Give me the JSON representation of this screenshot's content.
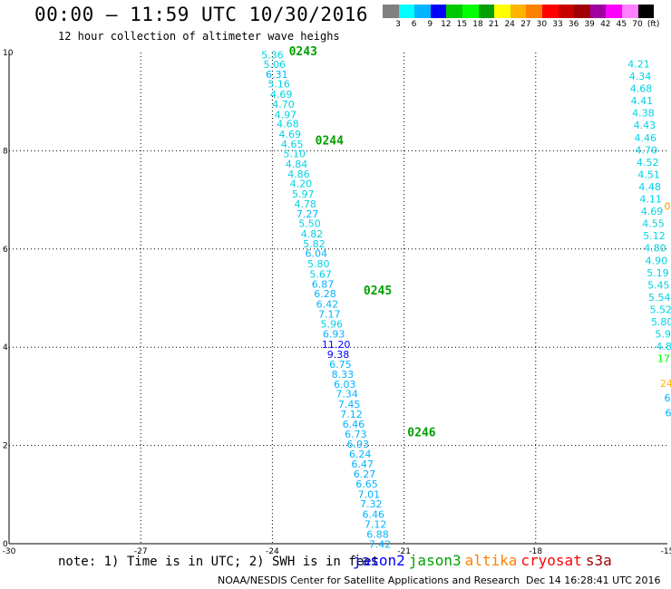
{
  "header": {
    "title": "00:00 – 11:59 UTC 10/30/2016",
    "subtitle": "12 hour collection of altimeter wave heighs"
  },
  "legend": {
    "colors": [
      "#808080",
      "#00ffff",
      "#00b4ff",
      "#0000ff",
      "#00c800",
      "#00ff00",
      "#00a000",
      "#ffff00",
      "#ffb400",
      "#ff8000",
      "#ff0000",
      "#c80000",
      "#a00000",
      "#a000a0",
      "#ff00ff",
      "#ff80ff",
      "#000000"
    ],
    "ticks": [
      "3",
      "6",
      "9",
      "12",
      "15",
      "18",
      "21",
      "24",
      "27",
      "30",
      "33",
      "36",
      "39",
      "42",
      "45",
      "70",
      "(ft)"
    ]
  },
  "note": "note: 1) Time is in UTC; 2) SWH is in feet",
  "satellites": [
    {
      "name": "jason2",
      "color": "#0000ff"
    },
    {
      "name": "jason3",
      "color": "#00a000"
    },
    {
      "name": "altika",
      "color": "#ff8000"
    },
    {
      "name": "cryosat",
      "color": "#ff0000"
    },
    {
      "name": "s3a",
      "color": "#a00000"
    }
  ],
  "footer": {
    "left": "NOAA/NESDIS Center for Satellite Applications and Research",
    "right": "Dec 14 16:28:41 UTC 2016"
  },
  "chart_data": {
    "type": "scatter",
    "xlim": [
      -30,
      -15
    ],
    "ylim": [
      0,
      10
    ],
    "x_ticks": [
      "-30",
      "-27",
      "-24",
      "-21",
      "-18",
      "-15"
    ],
    "y_ticks": [
      "0",
      "2",
      "4",
      "6",
      "8",
      "10"
    ],
    "grid": true,
    "tracks": [
      {
        "name": "jason3 main track",
        "points": [
          {
            "x": -24.0,
            "y": 9.95,
            "v": "5.36"
          },
          {
            "x": -23.95,
            "y": 9.76,
            "v": "5.06"
          },
          {
            "x": -23.9,
            "y": 9.56,
            "v": "6.31"
          },
          {
            "x": -23.85,
            "y": 9.36,
            "v": "5.16"
          },
          {
            "x": -23.8,
            "y": 9.15,
            "v": "4.69"
          },
          {
            "x": -23.75,
            "y": 8.95,
            "v": "4.70"
          },
          {
            "x": -23.7,
            "y": 8.74,
            "v": "4.97"
          },
          {
            "x": -23.65,
            "y": 8.55,
            "v": "4.68"
          },
          {
            "x": -23.6,
            "y": 8.34,
            "v": "4.69"
          },
          {
            "x": -23.55,
            "y": 8.14,
            "v": "4.65"
          },
          {
            "x": -23.5,
            "y": 7.94,
            "v": "5.10"
          },
          {
            "x": -23.45,
            "y": 7.73,
            "v": "4.84"
          },
          {
            "x": -23.4,
            "y": 7.53,
            "v": "4.86"
          },
          {
            "x": -23.35,
            "y": 7.33,
            "v": "4.20"
          },
          {
            "x": -23.3,
            "y": 7.12,
            "v": "5.97"
          },
          {
            "x": -23.25,
            "y": 6.92,
            "v": "4.78"
          },
          {
            "x": -23.2,
            "y": 6.72,
            "v": "7.27"
          },
          {
            "x": -23.15,
            "y": 6.52,
            "v": "5.50"
          },
          {
            "x": -23.1,
            "y": 6.31,
            "v": "4.82"
          },
          {
            "x": -23.05,
            "y": 6.11,
            "v": "5.82"
          },
          {
            "x": -23.0,
            "y": 5.91,
            "v": "6.04"
          },
          {
            "x": -22.95,
            "y": 5.7,
            "v": "5.80"
          },
          {
            "x": -22.9,
            "y": 5.49,
            "v": "5.67"
          },
          {
            "x": -22.85,
            "y": 5.29,
            "v": "6.87"
          },
          {
            "x": -22.8,
            "y": 5.09,
            "v": "6.28"
          },
          {
            "x": -22.75,
            "y": 4.88,
            "v": "6.42"
          },
          {
            "x": -22.7,
            "y": 4.68,
            "v": "7.17"
          },
          {
            "x": -22.65,
            "y": 4.47,
            "v": "5.96"
          },
          {
            "x": -22.6,
            "y": 4.27,
            "v": "6.93"
          },
          {
            "x": -22.55,
            "y": 4.06,
            "v": "11.20"
          },
          {
            "x": -22.5,
            "y": 3.86,
            "v": "9.38"
          },
          {
            "x": -22.45,
            "y": 3.65,
            "v": "6.75"
          },
          {
            "x": -22.4,
            "y": 3.45,
            "v": "8.33"
          },
          {
            "x": -22.35,
            "y": 3.25,
            "v": "6.03"
          },
          {
            "x": -22.3,
            "y": 3.05,
            "v": "7.34"
          },
          {
            "x": -22.25,
            "y": 2.84,
            "v": "7.45"
          },
          {
            "x": -22.2,
            "y": 2.64,
            "v": "7.12"
          },
          {
            "x": -22.15,
            "y": 2.44,
            "v": "6.46"
          },
          {
            "x": -22.1,
            "y": 2.23,
            "v": "6.73"
          },
          {
            "x": -22.05,
            "y": 2.03,
            "v": "6.93"
          },
          {
            "x": -22.0,
            "y": 1.83,
            "v": "6.24"
          },
          {
            "x": -21.95,
            "y": 1.62,
            "v": "6.47"
          },
          {
            "x": -21.9,
            "y": 1.42,
            "v": "6.27"
          },
          {
            "x": -21.85,
            "y": 1.22,
            "v": "6.65"
          },
          {
            "x": -21.8,
            "y": 1.01,
            "v": "7.01"
          },
          {
            "x": -21.75,
            "y": 0.81,
            "v": "7.32"
          },
          {
            "x": -21.7,
            "y": 0.6,
            "v": "6.46"
          },
          {
            "x": -21.65,
            "y": 0.4,
            "v": "7.12"
          },
          {
            "x": -21.6,
            "y": 0.19,
            "v": "6.88"
          },
          {
            "x": -21.55,
            "y": -0.01,
            "v": "7.42"
          }
        ]
      },
      {
        "name": "right track",
        "points": [
          {
            "x": -15.65,
            "y": 9.77,
            "v": "4.21"
          },
          {
            "x": -15.62,
            "y": 9.52,
            "v": "4.34"
          },
          {
            "x": -15.6,
            "y": 9.27,
            "v": "4.68"
          },
          {
            "x": -15.58,
            "y": 9.02,
            "v": "4.41"
          },
          {
            "x": -15.55,
            "y": 8.77,
            "v": "4.38"
          },
          {
            "x": -15.52,
            "y": 8.52,
            "v": "4.43"
          },
          {
            "x": -15.5,
            "y": 8.27,
            "v": "4.46"
          },
          {
            "x": -15.48,
            "y": 8.02,
            "v": "4.70"
          },
          {
            "x": -15.45,
            "y": 7.77,
            "v": "4.52"
          },
          {
            "x": -15.42,
            "y": 7.52,
            "v": "4.51"
          },
          {
            "x": -15.4,
            "y": 7.27,
            "v": "4.48"
          },
          {
            "x": -15.38,
            "y": 7.02,
            "v": "4.11"
          },
          {
            "x": -15.35,
            "y": 6.77,
            "v": "4.69"
          },
          {
            "x": -15.32,
            "y": 6.52,
            "v": "4.55"
          },
          {
            "x": -15.3,
            "y": 6.27,
            "v": "5.12"
          },
          {
            "x": -15.28,
            "y": 6.02,
            "v": "4.80"
          },
          {
            "x": -15.25,
            "y": 5.77,
            "v": "4.90"
          },
          {
            "x": -15.22,
            "y": 5.52,
            "v": "5.19"
          },
          {
            "x": -15.2,
            "y": 5.27,
            "v": "5.45"
          },
          {
            "x": -15.18,
            "y": 5.02,
            "v": "5.54"
          },
          {
            "x": -15.15,
            "y": 4.77,
            "v": "5.52"
          },
          {
            "x": -15.12,
            "y": 4.52,
            "v": "5.80"
          },
          {
            "x": -15.1,
            "y": 4.27,
            "v": "5.9"
          },
          {
            "x": -15.08,
            "y": 4.02,
            "v": "4.8"
          },
          {
            "x": -15.05,
            "y": 3.77,
            "v": "17."
          },
          {
            "x": -15.02,
            "y": 3.27,
            "v": "24"
          },
          {
            "x": -15.0,
            "y": 2.97,
            "v": "6"
          },
          {
            "x": -14.98,
            "y": 2.67,
            "v": "6"
          },
          {
            "x": -15.0,
            "y": 6.87,
            "v": "0"
          }
        ]
      }
    ],
    "time_labels": [
      {
        "x": -23.3,
        "y": 10.02,
        "label": "0243"
      },
      {
        "x": -22.7,
        "y": 8.2,
        "label": "0244"
      },
      {
        "x": -21.6,
        "y": 5.15,
        "label": "0245"
      },
      {
        "x": -20.6,
        "y": 2.26,
        "label": "0246"
      }
    ]
  }
}
